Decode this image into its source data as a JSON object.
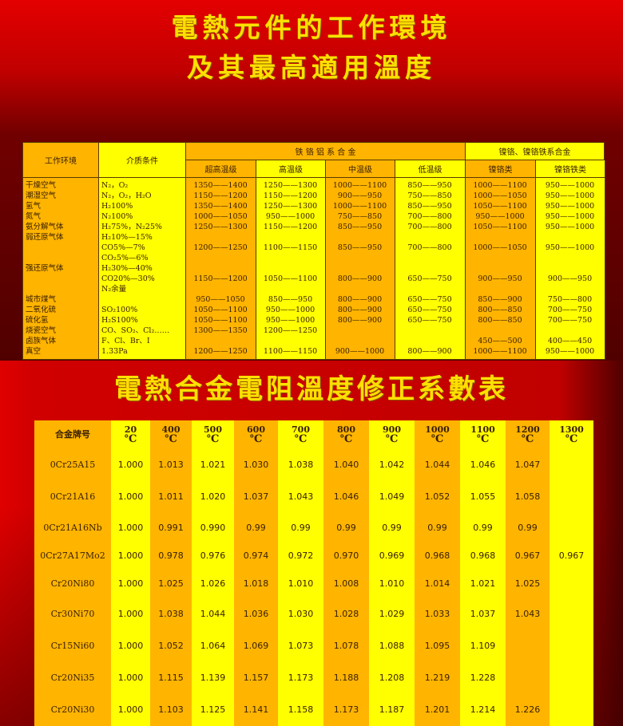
{
  "titles": {
    "line1": "電熱元件的工作環境",
    "line2": "及其最高適用溫度",
    "line3": "電熱合金電阻溫度修正系數表"
  },
  "table1": {
    "header": {
      "env": "工作环境",
      "medium": "介质条件",
      "fecral_group": "铁 铬 铝 系 合 金",
      "nicr_group": "镍铬、镍铬铁系合金",
      "sub": [
        "超高温级",
        "高温级",
        "中温级",
        "低温级",
        "镍铬类",
        "镍铬铁类"
      ]
    },
    "lines": [
      [
        "干燥空气",
        "N₂，O₂",
        "1350——1400",
        "1250——1300",
        "1000——1100",
        "850——950",
        "1000——1100",
        "950——1000"
      ],
      [
        "潮湿空气",
        "N₂，O₂，H₂O",
        "1150——1200",
        "1150——1200",
        "900——950",
        "750——850",
        "1000——1050",
        "950——1000"
      ],
      [
        "氢气",
        "H₂100%",
        "1350——1400",
        "1250——1300",
        "1000——1100",
        "850——950",
        "1050——1100",
        "950——1000"
      ],
      [
        "氮气",
        "N₂100%",
        "1000——1050",
        "950——1000",
        "750——850",
        "700——800",
        "950——1000",
        "950——1000"
      ],
      [
        "氨分解气体",
        "H₂75%，N₂25%",
        "1250——1300",
        "1150——1200",
        "850——950",
        "700——800",
        "1050——1100",
        "950——1000"
      ],
      [
        "弱还原气体",
        "H₂10%—15%",
        "",
        "",
        "",
        "",
        "",
        ""
      ],
      [
        "",
        "CO5%—7%",
        "1200——1250",
        "1100——1150",
        "850——950",
        "700——800",
        "1000——1050",
        "950——1000"
      ],
      [
        "",
        "CO₂5%—6%",
        "",
        "",
        "",
        "",
        "",
        ""
      ],
      [
        "强还原气体",
        "H₂30%—40%",
        "",
        "",
        "",
        "",
        "",
        ""
      ],
      [
        "",
        "CO20%—30%",
        "1150——1200",
        "1050——1100",
        "800——900",
        "650——750",
        "900——950",
        "900——950"
      ],
      [
        "",
        "N₂余量",
        "",
        "",
        "",
        "",
        "",
        ""
      ],
      [
        "城市煤气",
        "",
        "950——1050",
        "850——950",
        "800——900",
        "650——750",
        "850——900",
        "750——800"
      ],
      [
        "二氧化硫",
        "SO₂100%",
        "1050——1100",
        "950——1000",
        "800——900",
        "650——750",
        "800——850",
        "700——750"
      ],
      [
        "硫化氢",
        "H₂S100%",
        "1050——1100",
        "950——1000",
        "800——900",
        "650——750",
        "800——850",
        "700——750"
      ],
      [
        "烧瓷空气",
        "CO、SO₂、Cl₂……",
        "1300——1350",
        "1200——1250",
        "",
        "",
        "",
        ""
      ],
      [
        "卤族气体",
        "F、Cl、Br、I",
        "",
        "",
        "",
        "",
        "450——500",
        "400——450"
      ],
      [
        "真空",
        "1.33Pa",
        "1200——1250",
        "1100——1150",
        "900——1000",
        "800——900",
        "1000——1100",
        "950——1000"
      ]
    ]
  },
  "table2": {
    "header_label": "合金牌号",
    "unit": "℃",
    "temps": [
      "20",
      "400",
      "500",
      "600",
      "700",
      "800",
      "900",
      "1000",
      "1100",
      "1200",
      "1300"
    ],
    "rows": [
      {
        "alloy": "0Cr25A15",
        "values": [
          "1.000",
          "1.013",
          "1.021",
          "1.030",
          "1.038",
          "1.040",
          "1.042",
          "1.044",
          "1.046",
          "1.047",
          ""
        ]
      },
      {
        "alloy": "0Cr21A16",
        "values": [
          "1.000",
          "1.011",
          "1.020",
          "1.037",
          "1.043",
          "1.046",
          "1.049",
          "1.052",
          "1.055",
          "1.058",
          ""
        ]
      },
      {
        "alloy": "0Cr21A16Nb",
        "values": [
          "1.000",
          "0.991",
          "0.990",
          "0.99",
          "0.99",
          "0.99",
          "0.99",
          "0.99",
          "0.99",
          "0.99",
          ""
        ]
      },
      {
        "alloy": "0Cr27A17Mo2",
        "values": [
          "1.000",
          "0.978",
          "0.976",
          "0.974",
          "0.972",
          "0.970",
          "0.969",
          "0.968",
          "0.968",
          "0.967",
          "0.967"
        ]
      },
      {
        "alloy": "Cr20Ni80",
        "values": [
          "1.000",
          "1.025",
          "1.026",
          "1.018",
          "1.010",
          "1.008",
          "1.010",
          "1.014",
          "1.021",
          "1.025",
          ""
        ]
      },
      {
        "alloy": "Cr30Ni70",
        "values": [
          "1.000",
          "1.038",
          "1.044",
          "1.036",
          "1.030",
          "1.028",
          "1.029",
          "1.033",
          "1.037",
          "1.043",
          ""
        ]
      },
      {
        "alloy": "Cr15Ni60",
        "values": [
          "1.000",
          "1.052",
          "1.064",
          "1.069",
          "1.073",
          "1.078",
          "1.088",
          "1.095",
          "1.109",
          "",
          ""
        ]
      },
      {
        "alloy": "Cr20Ni35",
        "values": [
          "1.000",
          "1.115",
          "1.139",
          "1.157",
          "1.173",
          "1.188",
          "1.208",
          "1.219",
          "1.228",
          "",
          ""
        ]
      },
      {
        "alloy": "Cr20Ni30",
        "values": [
          "1.000",
          "1.103",
          "1.125",
          "1.141",
          "1.158",
          "1.173",
          "1.187",
          "1.201",
          "1.214",
          "1.226",
          ""
        ]
      }
    ]
  },
  "colors": {
    "title": "#ffe000",
    "orange": "#ffb400",
    "yellow": "#ffff00",
    "red": "#e00000"
  }
}
